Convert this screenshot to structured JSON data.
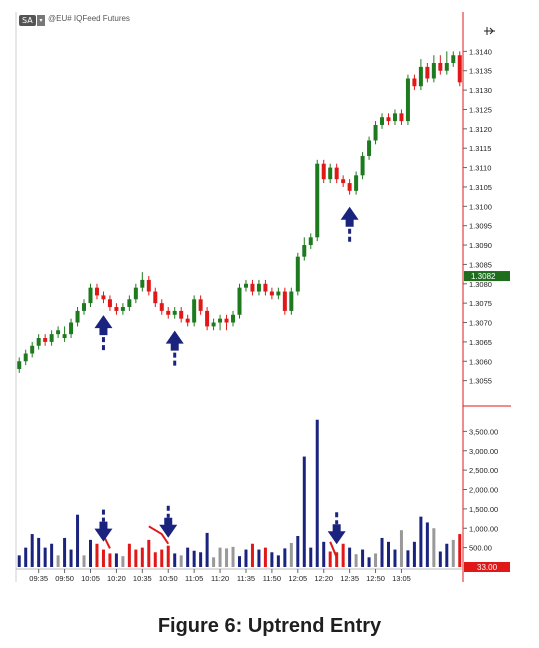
{
  "header": {
    "badge": "SA",
    "dropdown_icon": "chevron-down-icon",
    "symbol": "@EU# IQFeed Futures",
    "cursor_icon": "crosshair-cursor-icon"
  },
  "caption": "Figure 6:  Uptrend Entry",
  "chart_data": [
    {
      "type": "candlestick",
      "title": "",
      "ylim": [
        1.305,
        1.3145
      ],
      "y_ticks": [
        "1.3140",
        "1.3135",
        "1.3130",
        "1.3125",
        "1.3120",
        "1.3115",
        "1.3110",
        "1.3105",
        "1.3100",
        "1.3095",
        "1.3090",
        "1.3085",
        "1.3080",
        "1.3075",
        "1.3070",
        "1.3065",
        "1.3060",
        "1.3055"
      ],
      "last_price": {
        "label": "1.3082",
        "value": 1.3082,
        "color": "#1e6e1e"
      },
      "colors": {
        "up": "#1e7a1e",
        "down": "#e01818"
      },
      "candles": [
        {
          "o": 1.3058,
          "c": 1.306,
          "h": 1.3061,
          "l": 1.3057
        },
        {
          "o": 1.306,
          "c": 1.3062,
          "h": 1.3063,
          "l": 1.3059
        },
        {
          "o": 1.3062,
          "c": 1.3064,
          "h": 1.3065,
          "l": 1.3061
        },
        {
          "o": 1.3064,
          "c": 1.3066,
          "h": 1.3067,
          "l": 1.3063
        },
        {
          "o": 1.3066,
          "c": 1.3065,
          "h": 1.3067,
          "l": 1.3064
        },
        {
          "o": 1.3065,
          "c": 1.3067,
          "h": 1.3068,
          "l": 1.3064
        },
        {
          "o": 1.3067,
          "c": 1.3068,
          "h": 1.3069,
          "l": 1.3066
        },
        {
          "o": 1.3066,
          "c": 1.3067,
          "h": 1.3069,
          "l": 1.3065
        },
        {
          "o": 1.3067,
          "c": 1.307,
          "h": 1.3071,
          "l": 1.3066
        },
        {
          "o": 1.307,
          "c": 1.3073,
          "h": 1.3074,
          "l": 1.3069
        },
        {
          "o": 1.3073,
          "c": 1.3075,
          "h": 1.3076,
          "l": 1.3072
        },
        {
          "o": 1.3075,
          "c": 1.3079,
          "h": 1.308,
          "l": 1.3074
        },
        {
          "o": 1.3079,
          "c": 1.3077,
          "h": 1.308,
          "l": 1.3076
        },
        {
          "o": 1.3077,
          "c": 1.3076,
          "h": 1.3078,
          "l": 1.3075
        },
        {
          "o": 1.3076,
          "c": 1.3074,
          "h": 1.3077,
          "l": 1.3073
        },
        {
          "o": 1.3074,
          "c": 1.3073,
          "h": 1.3075,
          "l": 1.3072
        },
        {
          "o": 1.3073,
          "c": 1.3074,
          "h": 1.3075,
          "l": 1.3072
        },
        {
          "o": 1.3074,
          "c": 1.3076,
          "h": 1.3077,
          "l": 1.3073
        },
        {
          "o": 1.3076,
          "c": 1.3079,
          "h": 1.308,
          "l": 1.3075
        },
        {
          "o": 1.3079,
          "c": 1.3081,
          "h": 1.3083,
          "l": 1.3078
        },
        {
          "o": 1.3081,
          "c": 1.3078,
          "h": 1.3082,
          "l": 1.3077
        },
        {
          "o": 1.3078,
          "c": 1.3075,
          "h": 1.3079,
          "l": 1.3074
        },
        {
          "o": 1.3075,
          "c": 1.3073,
          "h": 1.3076,
          "l": 1.3072
        },
        {
          "o": 1.3073,
          "c": 1.3072,
          "h": 1.3074,
          "l": 1.3071
        },
        {
          "o": 1.3072,
          "c": 1.3073,
          "h": 1.3074,
          "l": 1.3071
        },
        {
          "o": 1.3073,
          "c": 1.3071,
          "h": 1.3074,
          "l": 1.307
        },
        {
          "o": 1.3071,
          "c": 1.307,
          "h": 1.3072,
          "l": 1.3069
        },
        {
          "o": 1.307,
          "c": 1.3076,
          "h": 1.3077,
          "l": 1.3069
        },
        {
          "o": 1.3076,
          "c": 1.3073,
          "h": 1.3077,
          "l": 1.3072
        },
        {
          "o": 1.3073,
          "c": 1.3069,
          "h": 1.3074,
          "l": 1.3068
        },
        {
          "o": 1.3069,
          "c": 1.307,
          "h": 1.3071,
          "l": 1.3068
        },
        {
          "o": 1.307,
          "c": 1.3071,
          "h": 1.3072,
          "l": 1.3068
        },
        {
          "o": 1.3071,
          "c": 1.307,
          "h": 1.3072,
          "l": 1.3068
        },
        {
          "o": 1.307,
          "c": 1.3072,
          "h": 1.3073,
          "l": 1.3069
        },
        {
          "o": 1.3072,
          "c": 1.3079,
          "h": 1.308,
          "l": 1.3071
        },
        {
          "o": 1.3079,
          "c": 1.308,
          "h": 1.3081,
          "l": 1.3078
        },
        {
          "o": 1.308,
          "c": 1.3078,
          "h": 1.3081,
          "l": 1.3077
        },
        {
          "o": 1.3078,
          "c": 1.308,
          "h": 1.3081,
          "l": 1.3077
        },
        {
          "o": 1.308,
          "c": 1.3078,
          "h": 1.3081,
          "l": 1.3077
        },
        {
          "o": 1.3078,
          "c": 1.3077,
          "h": 1.3079,
          "l": 1.3076
        },
        {
          "o": 1.3077,
          "c": 1.3078,
          "h": 1.3079,
          "l": 1.3076
        },
        {
          "o": 1.3078,
          "c": 1.3073,
          "h": 1.3079,
          "l": 1.3072
        },
        {
          "o": 1.3073,
          "c": 1.3078,
          "h": 1.3079,
          "l": 1.3072
        },
        {
          "o": 1.3078,
          "c": 1.3087,
          "h": 1.3088,
          "l": 1.3077
        },
        {
          "o": 1.3087,
          "c": 1.309,
          "h": 1.3092,
          "l": 1.3086
        },
        {
          "o": 1.309,
          "c": 1.3092,
          "h": 1.3093,
          "l": 1.3089
        },
        {
          "o": 1.3092,
          "c": 1.3111,
          "h": 1.3112,
          "l": 1.3091
        },
        {
          "o": 1.3111,
          "c": 1.3107,
          "h": 1.3112,
          "l": 1.3106
        },
        {
          "o": 1.3107,
          "c": 1.311,
          "h": 1.3111,
          "l": 1.3106
        },
        {
          "o": 1.311,
          "c": 1.3107,
          "h": 1.3111,
          "l": 1.3106
        },
        {
          "o": 1.3107,
          "c": 1.3106,
          "h": 1.3108,
          "l": 1.3105
        },
        {
          "o": 1.3106,
          "c": 1.3104,
          "h": 1.3107,
          "l": 1.3103
        },
        {
          "o": 1.3104,
          "c": 1.3108,
          "h": 1.3109,
          "l": 1.3103
        },
        {
          "o": 1.3108,
          "c": 1.3113,
          "h": 1.3114,
          "l": 1.3107
        },
        {
          "o": 1.3113,
          "c": 1.3117,
          "h": 1.3118,
          "l": 1.3112
        },
        {
          "o": 1.3117,
          "c": 1.3121,
          "h": 1.3122,
          "l": 1.3116
        },
        {
          "o": 1.3121,
          "c": 1.3123,
          "h": 1.3124,
          "l": 1.312
        },
        {
          "o": 1.3123,
          "c": 1.3122,
          "h": 1.3124,
          "l": 1.3121
        },
        {
          "o": 1.3122,
          "c": 1.3124,
          "h": 1.3125,
          "l": 1.3121
        },
        {
          "o": 1.3124,
          "c": 1.3122,
          "h": 1.3125,
          "l": 1.3121
        },
        {
          "o": 1.3122,
          "c": 1.3133,
          "h": 1.3134,
          "l": 1.3121
        },
        {
          "o": 1.3133,
          "c": 1.3131,
          "h": 1.3134,
          "l": 1.313
        },
        {
          "o": 1.3131,
          "c": 1.3136,
          "h": 1.3138,
          "l": 1.313
        },
        {
          "o": 1.3136,
          "c": 1.3133,
          "h": 1.3137,
          "l": 1.3132
        },
        {
          "o": 1.3133,
          "c": 1.3137,
          "h": 1.3139,
          "l": 1.3132
        },
        {
          "o": 1.3137,
          "c": 1.3135,
          "h": 1.3139,
          "l": 1.3134
        },
        {
          "o": 1.3135,
          "c": 1.3137,
          "h": 1.314,
          "l": 1.3134
        },
        {
          "o": 1.3137,
          "c": 1.3139,
          "h": 1.314,
          "l": 1.3136
        },
        {
          "o": 1.3139,
          "c": 1.3132,
          "h": 1.314,
          "l": 1.3131
        }
      ],
      "entry_arrows": [
        13,
        24,
        51
      ]
    },
    {
      "type": "bar",
      "title": "",
      "ylim": [
        0,
        4000
      ],
      "y_ticks": [
        "3,500.00",
        "3,000.00",
        "2,500.00",
        "2,000.00",
        "1,500.00",
        "1,000.00",
        "500.00"
      ],
      "last_volume": {
        "label": "33.00",
        "value": 33,
        "color": "#e01818"
      },
      "colors": {
        "navy": "#1a237e",
        "red": "#e01818",
        "gray": "#999999"
      },
      "values": [
        300,
        500,
        850,
        750,
        500,
        600,
        300,
        750,
        450,
        1350,
        300,
        700,
        600,
        450,
        350,
        350,
        280,
        600,
        450,
        500,
        700,
        380,
        450,
        550,
        350,
        300,
        500,
        420,
        380,
        880,
        250,
        500,
        480,
        520,
        280,
        450,
        600,
        450,
        500,
        380,
        300,
        480,
        620,
        800,
        2850,
        500,
        3800,
        650,
        400,
        380,
        600,
        500,
        330,
        450,
        250,
        350,
        750,
        650,
        450,
        950,
        430,
        650,
        1300,
        1150,
        1000,
        400,
        600,
        700,
        850
      ],
      "bar_colors": [
        "navy",
        "navy",
        "navy",
        "navy",
        "navy",
        "navy",
        "gray",
        "navy",
        "navy",
        "navy",
        "gray",
        "navy",
        "red",
        "red",
        "red",
        "navy",
        "gray",
        "red",
        "red",
        "red",
        "red",
        "red",
        "red",
        "red",
        "navy",
        "gray",
        "navy",
        "navy",
        "navy",
        "navy",
        "gray",
        "gray",
        "gray",
        "gray",
        "navy",
        "navy",
        "red",
        "navy",
        "red",
        "navy",
        "navy",
        "navy",
        "gray",
        "navy",
        "navy",
        "navy",
        "navy",
        "navy",
        "red",
        "red",
        "red",
        "navy",
        "gray",
        "navy",
        "navy",
        "gray",
        "navy",
        "navy",
        "navy",
        "gray",
        "navy",
        "navy",
        "navy",
        "navy",
        "gray",
        "navy",
        "navy",
        "gray",
        "red"
      ],
      "annotations": [
        {
          "type": "line",
          "points": [
            [
              12,
              950
            ],
            [
              13,
              820
            ],
            [
              14,
              480
            ]
          ],
          "color": "#e01818"
        },
        {
          "type": "line",
          "points": [
            [
              20,
              1050
            ],
            [
              22,
              850
            ],
            [
              23,
              600
            ]
          ],
          "color": "#e01818"
        },
        {
          "type": "line",
          "points": [
            [
              48,
              650
            ],
            [
              49,
              250
            ]
          ],
          "color": "#e01818"
        }
      ],
      "entry_arrows": [
        13,
        23,
        49
      ]
    }
  ],
  "x_ticks": [
    "09:35",
    "09:50",
    "10:05",
    "10:20",
    "10:35",
    "10:50",
    "11:05",
    "11:20",
    "11:35",
    "11:50",
    "12:05",
    "12:20",
    "12:35",
    "12:50",
    "13:05"
  ],
  "x_tick_bars": [
    3,
    7,
    11,
    15,
    19,
    23,
    27,
    31,
    35,
    39,
    43,
    47,
    51,
    55,
    59
  ]
}
